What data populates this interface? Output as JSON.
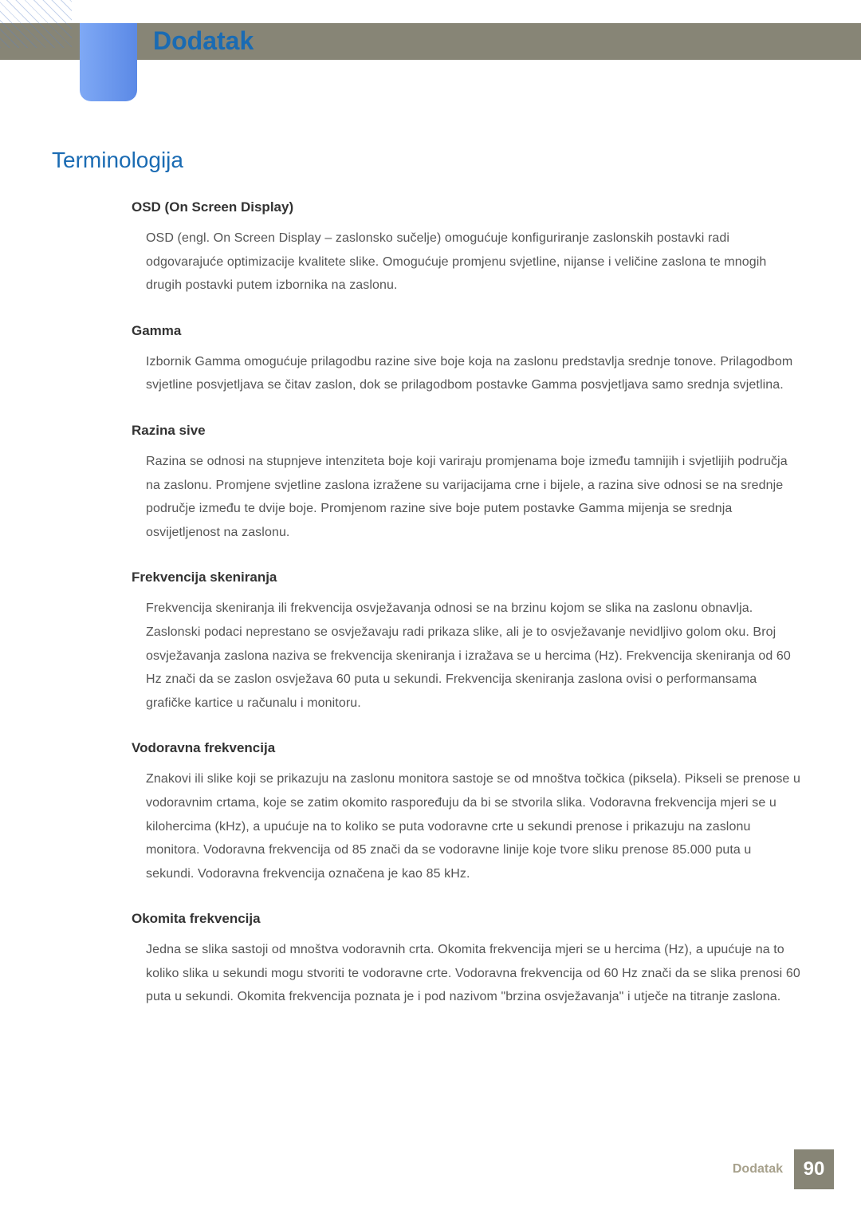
{
  "colors": {
    "header_bar": "#878576",
    "blue_tab_left": "#7fa9f5",
    "blue_tab_right": "#5b89e6",
    "accent_blue": "#1a6bb3",
    "body_text": "#555555",
    "heading_text": "#333333",
    "footer_label": "#a7a18c",
    "footer_box": "#878576",
    "page_bg": "#ffffff"
  },
  "typography": {
    "chapter_fontsize": 32,
    "section_fontsize": 28,
    "term_heading_fontsize": 17,
    "body_fontsize": 16,
    "body_line_height": 1.85
  },
  "chapter": "Dodatak",
  "section": "Terminologija",
  "terms": [
    {
      "heading": "OSD (On Screen Display)",
      "body": "OSD (engl. On Screen Display – zaslonsko sučelje) omogućuje konfiguriranje zaslonskih postavki radi odgovarajuće optimizacije kvalitete slike. Omogućuje promjenu svjetline, nijanse i veličine zaslona te mnogih drugih postavki putem izbornika na zaslonu."
    },
    {
      "heading": "Gamma",
      "body": "Izbornik Gamma omogućuje prilagodbu razine sive boje koja na zaslonu predstavlja srednje tonove. Prilagodbom svjetline posvjetljava se čitav zaslon, dok se prilagodbom postavke Gamma posvjetljava samo srednja svjetlina."
    },
    {
      "heading": "Razina sive",
      "body": "Razina se odnosi na stupnjeve intenziteta boje koji variraju promjenama boje između tamnijih i svjetlijih područja na zaslonu. Promjene svjetline zaslona izražene su varijacijama crne i bijele, a razina sive odnosi se na srednje područje između te dvije boje. Promjenom razine sive boje putem postavke Gamma mijenja se srednja osvijetljenost na zaslonu."
    },
    {
      "heading": "Frekvencija skeniranja",
      "body": "Frekvencija skeniranja ili frekvencija osvježavanja odnosi se na brzinu kojom se slika na zaslonu obnavlja. Zaslonski podaci neprestano se osvježavaju radi prikaza slike, ali je to osvježavanje nevidljivo golom oku. Broj osvježavanja zaslona naziva se frekvencija skeniranja i izražava se u hercima (Hz). Frekvencija skeniranja od 60 Hz znači da se zaslon osvježava 60 puta u sekundi. Frekvencija skeniranja zaslona ovisi o performansama grafičke kartice u računalu i monitoru."
    },
    {
      "heading": "Vodoravna frekvencija",
      "body": "Znakovi ili slike koji se prikazuju na zaslonu monitora sastoje se od mnoštva točkica (piksela). Pikseli se prenose u vodoravnim crtama, koje se zatim okomito raspoređuju da bi se stvorila slika. Vodoravna frekvencija mjeri se u kilohercima (kHz), a upućuje na to koliko se puta vodoravne crte u sekundi prenose i prikazuju na zaslonu monitora. Vodoravna frekvencija od 85 znači da se vodoravne linije koje tvore sliku prenose 85.000 puta u sekundi. Vodoravna frekvencija označena je kao 85 kHz."
    },
    {
      "heading": "Okomita frekvencija",
      "body": "Jedna se slika sastoji od mnoštva vodoravnih crta. Okomita frekvencija mjeri se u hercima (Hz), a upućuje na to koliko slika u sekundi mogu stvoriti te vodoravne crte. Vodoravna frekvencija od 60 Hz znači da se slika prenosi 60 puta u sekundi. Okomita frekvencija poznata je i pod nazivom \"brzina osvježavanja\" i utječe na titranje zaslona."
    }
  ],
  "footer": {
    "label": "Dodatak",
    "page": "90"
  }
}
